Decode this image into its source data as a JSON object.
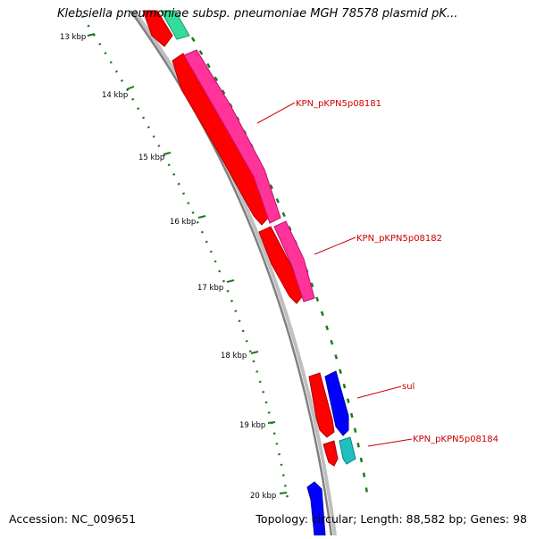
{
  "title": "Klebsiella pneumoniae subsp. pneumoniae MGH 78578 plasmid pK...",
  "accession": "Accession: NC_009651",
  "summary": "Topology: circular; Length: 88,582 bp; Genes: 98",
  "kbp_labels": [
    "13 kbp",
    "14 kbp",
    "15 kbp",
    "16 kbp",
    "17 kbp",
    "18 kbp",
    "19 kbp",
    "20 kbp"
  ],
  "gene_labels": [
    "KPN_pKPN5p08181",
    "KPN_pKPN5p08182",
    "sul",
    "KPN_pKPN5p08184"
  ],
  "colors": {
    "backbone": "#808080",
    "ruler": "#1a7a1a",
    "label_text": "#cc0000",
    "red": "#ff0000",
    "magenta": "#ff3399",
    "blue": "#0000ff",
    "cyan": "#20c0c0",
    "teal": "#33dd99"
  }
}
